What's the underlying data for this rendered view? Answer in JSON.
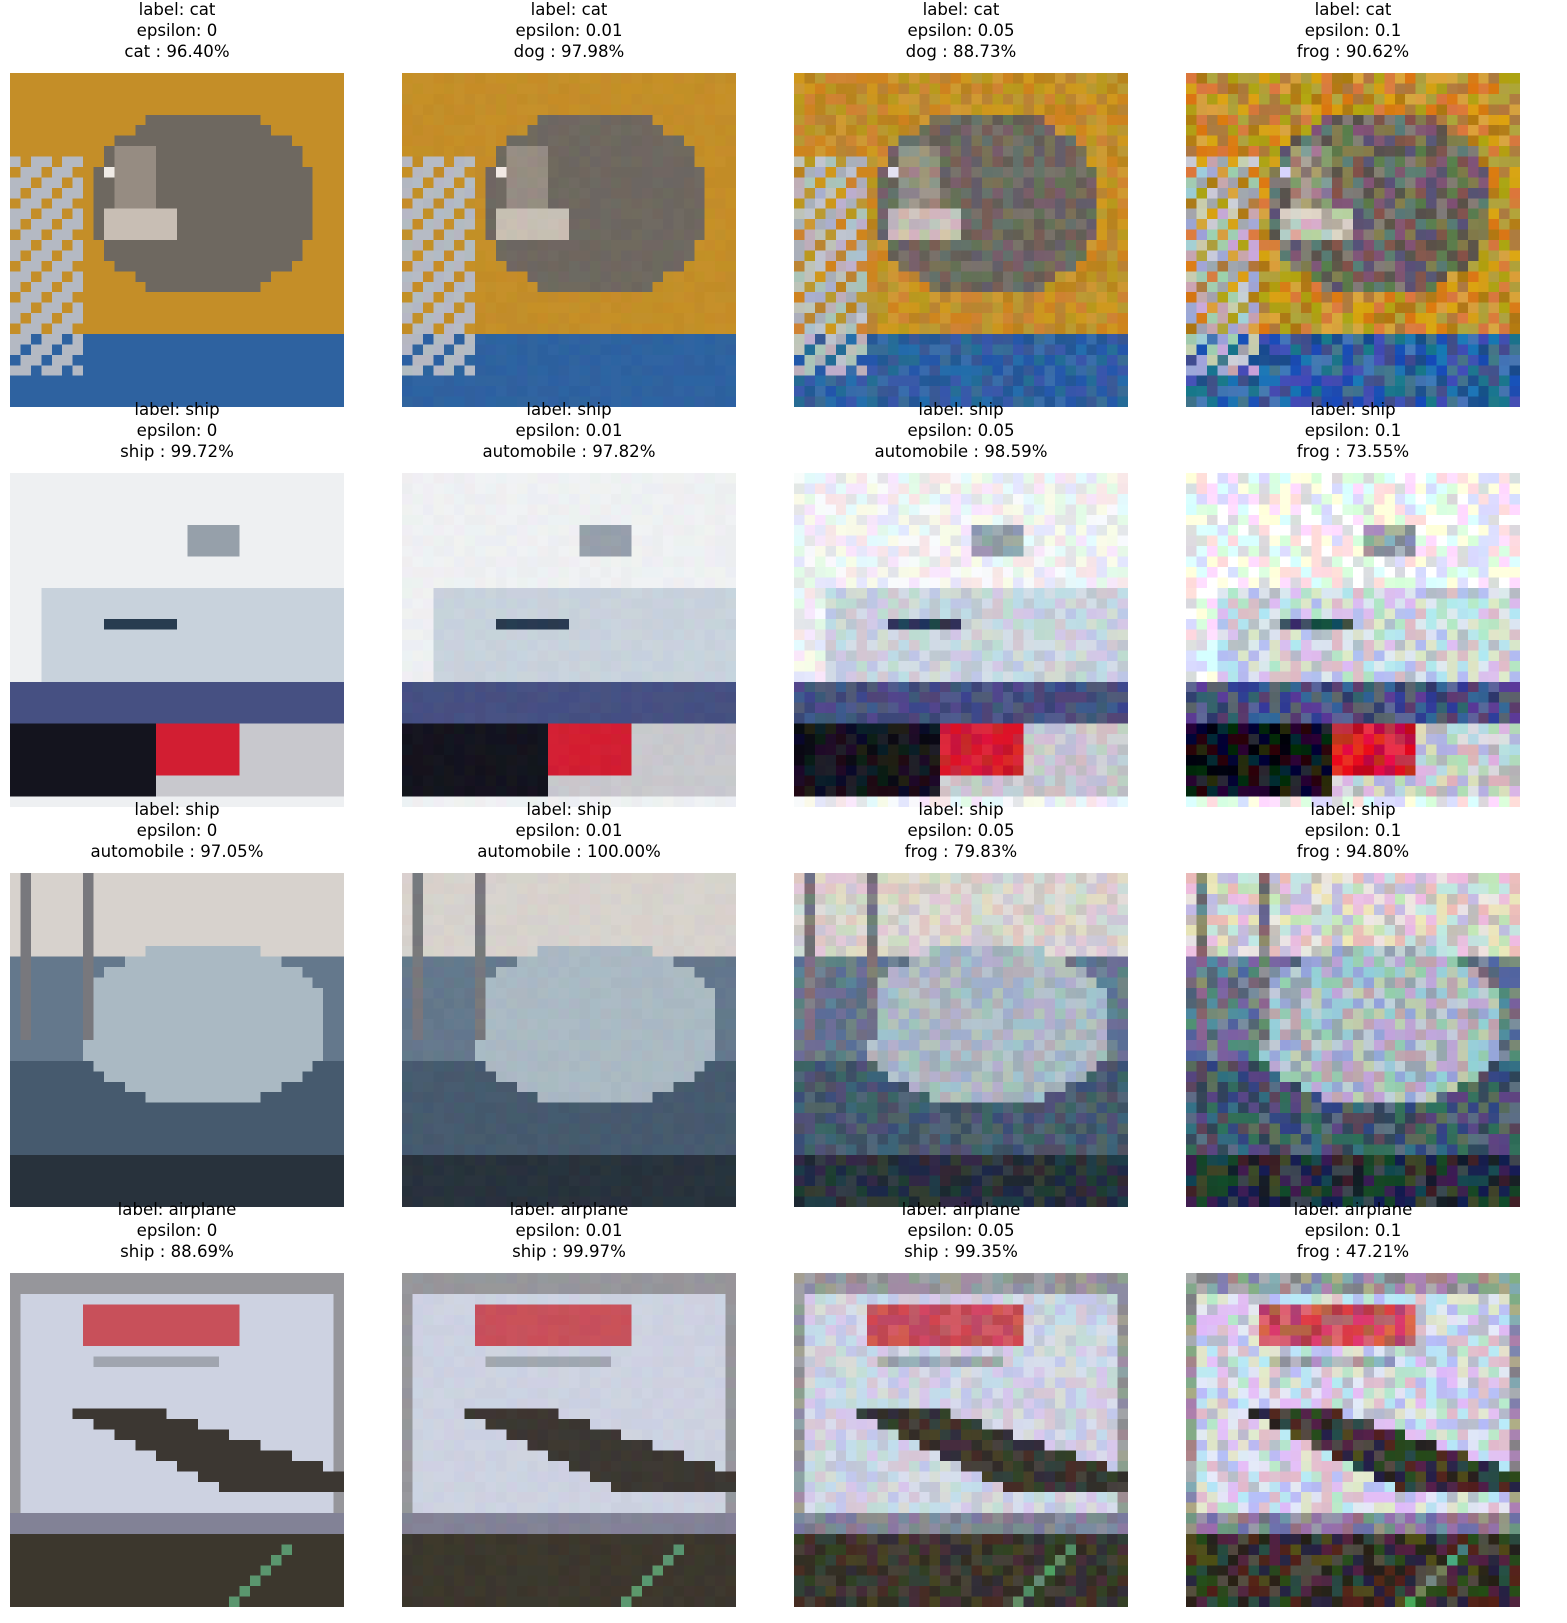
{
  "figure": {
    "rows": [
      {
        "scene": "cat",
        "panels": [
          {
            "label": "label: cat",
            "epsilon": "epsilon: 0",
            "prediction": "cat : 96.40%",
            "noise": 0
          },
          {
            "label": "label: cat",
            "epsilon": "epsilon: 0.01",
            "prediction": "dog : 97.98%",
            "noise": 0.01
          },
          {
            "label": "label: cat",
            "epsilon": "epsilon: 0.05",
            "prediction": "dog : 88.73%",
            "noise": 0.05
          },
          {
            "label": "label: cat",
            "epsilon": "epsilon: 0.1",
            "prediction": "frog : 90.62%",
            "noise": 0.1
          }
        ]
      },
      {
        "scene": "ship-red",
        "panels": [
          {
            "label": "label: ship",
            "epsilon": "epsilon: 0",
            "prediction": "ship : 99.72%",
            "noise": 0
          },
          {
            "label": "label: ship",
            "epsilon": "epsilon: 0.01",
            "prediction": "automobile : 97.82%",
            "noise": 0.01
          },
          {
            "label": "label: ship",
            "epsilon": "epsilon: 0.05",
            "prediction": "automobile : 98.59%",
            "noise": 0.05
          },
          {
            "label": "label: ship",
            "epsilon": "epsilon: 0.1",
            "prediction": "frog : 73.55%",
            "noise": 0.1
          }
        ]
      },
      {
        "scene": "ship-harbor",
        "panels": [
          {
            "label": "label: ship",
            "epsilon": "epsilon: 0",
            "prediction": "automobile : 97.05%",
            "noise": 0
          },
          {
            "label": "label: ship",
            "epsilon": "epsilon: 0.01",
            "prediction": "automobile : 100.00%",
            "noise": 0.01
          },
          {
            "label": "label: ship",
            "epsilon": "epsilon: 0.05",
            "prediction": "frog : 79.83%",
            "noise": 0.05
          },
          {
            "label": "label: ship",
            "epsilon": "epsilon: 0.1",
            "prediction": "frog : 94.80%",
            "noise": 0.1
          }
        ]
      },
      {
        "scene": "airplane",
        "panels": [
          {
            "label": "label: airplane",
            "epsilon": "epsilon: 0",
            "prediction": "ship : 88.69%",
            "noise": 0
          },
          {
            "label": "label: airplane",
            "epsilon": "epsilon: 0.01",
            "prediction": "ship : 99.97%",
            "noise": 0.01
          },
          {
            "label": "label: airplane",
            "epsilon": "epsilon: 0.05",
            "prediction": "ship : 99.35%",
            "noise": 0.05
          },
          {
            "label": "label: airplane",
            "epsilon": "epsilon: 0.1",
            "prediction": "frog : 47.21%",
            "noise": 0.1
          }
        ]
      }
    ]
  }
}
